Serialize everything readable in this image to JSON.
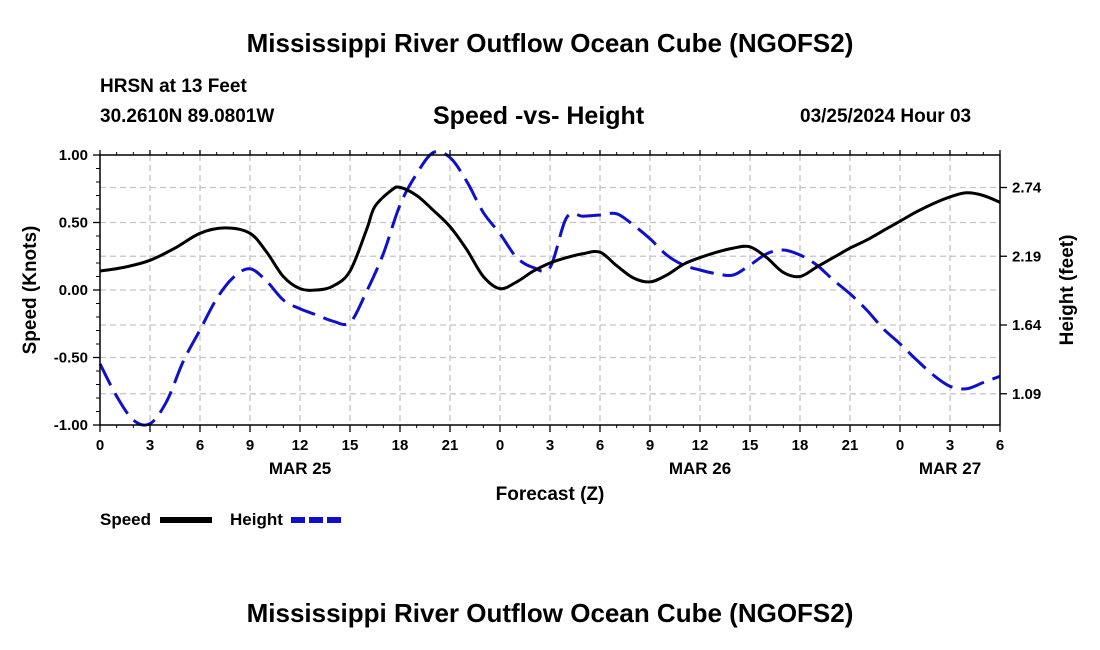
{
  "header": {
    "title": "Mississippi River Outflow Ocean Cube (NGOFS2)",
    "station": "HRSN at 13 Feet",
    "coords": "30.2610N  89.0801W",
    "subtitle": "Speed -vs- Height",
    "datetime": "03/25/2024 Hour 03"
  },
  "footer": {
    "title": "Mississippi River Outflow Ocean Cube (NGOFS2)"
  },
  "chart_data": {
    "type": "line",
    "xlabel": "Forecast (Z)",
    "ylabel_left": "Speed (Knots)",
    "ylabel_right": "Height (feet)",
    "x_unit": "hours since 03/25 00Z",
    "xlim": [
      0,
      54
    ],
    "ylim_left": [
      -1.0,
      1.0
    ],
    "ylim_right": [
      0.84,
      3.0
    ],
    "grid": true,
    "x_ticks": [
      0,
      3,
      6,
      9,
      12,
      15,
      18,
      21,
      24,
      27,
      30,
      33,
      36,
      39,
      42,
      45,
      48,
      51,
      54
    ],
    "x_tick_labels": [
      "0",
      "3",
      "6",
      "9",
      "12",
      "15",
      "18",
      "21",
      "0",
      "3",
      "6",
      "9",
      "12",
      "15",
      "18",
      "21",
      "0",
      "3",
      "6"
    ],
    "date_labels": [
      {
        "x": 12,
        "label": "MAR 25"
      },
      {
        "x": 36,
        "label": "MAR 26"
      },
      {
        "x": 51,
        "label": "MAR 27"
      }
    ],
    "left_ticks": [
      1.0,
      0.5,
      0.0,
      -0.5,
      -1.0
    ],
    "left_tick_labels": [
      "1.00",
      "0.50",
      "0.00",
      "-0.50",
      "-1.00"
    ],
    "right_ticks": [
      2.74,
      2.19,
      1.64,
      1.09
    ],
    "right_tick_labels": [
      "2.74",
      "2.19",
      "1.64",
      "1.09"
    ],
    "legend": [
      {
        "name": "Speed",
        "color": "#000000",
        "dashed": false
      },
      {
        "name": "Height",
        "color": "#1010cc",
        "dashed": true
      }
    ],
    "series": [
      {
        "name": "Speed",
        "axis": "left",
        "color": "#000000",
        "x": [
          0,
          1.5,
          3,
          4.5,
          6,
          7.5,
          9,
          10,
          11,
          12,
          13,
          14,
          15,
          16,
          16.5,
          17.5,
          18,
          19,
          20,
          21,
          22,
          23,
          24,
          25,
          26,
          27,
          28,
          29,
          30,
          31,
          32,
          33,
          34,
          35,
          36,
          37,
          38,
          39,
          40,
          41,
          42,
          43,
          44,
          45,
          46,
          47,
          48,
          49,
          50,
          51,
          52,
          53,
          54
        ],
        "y": [
          0.14,
          0.17,
          0.22,
          0.31,
          0.42,
          0.46,
          0.42,
          0.28,
          0.1,
          0.01,
          0.0,
          0.03,
          0.14,
          0.45,
          0.62,
          0.74,
          0.76,
          0.7,
          0.59,
          0.47,
          0.3,
          0.1,
          0.01,
          0.06,
          0.14,
          0.2,
          0.24,
          0.27,
          0.28,
          0.18,
          0.09,
          0.06,
          0.11,
          0.19,
          0.24,
          0.28,
          0.31,
          0.32,
          0.24,
          0.13,
          0.1,
          0.17,
          0.24,
          0.31,
          0.37,
          0.44,
          0.51,
          0.58,
          0.64,
          0.69,
          0.72,
          0.7,
          0.65
        ]
      },
      {
        "name": "Height",
        "axis": "right",
        "color": "#1010cc",
        "x": [
          0,
          1,
          2,
          3,
          4,
          5,
          6,
          7,
          8,
          9,
          10,
          11,
          12,
          13,
          14,
          15,
          16,
          17,
          18,
          19,
          20,
          21,
          22,
          23,
          24,
          25,
          26,
          27,
          28,
          29,
          30,
          31,
          32,
          33,
          34,
          35,
          36,
          37,
          38,
          39,
          40,
          41,
          42,
          43,
          44,
          45,
          46,
          47,
          48,
          49,
          50,
          51,
          52,
          53,
          54
        ],
        "y": [
          1.33,
          1.07,
          0.88,
          0.85,
          1.03,
          1.35,
          1.6,
          1.85,
          2.02,
          2.09,
          1.99,
          1.84,
          1.77,
          1.72,
          1.67,
          1.66,
          1.91,
          2.21,
          2.6,
          2.85,
          3.02,
          2.98,
          2.79,
          2.54,
          2.37,
          2.18,
          2.1,
          2.1,
          2.5,
          2.51,
          2.52,
          2.53,
          2.44,
          2.33,
          2.2,
          2.12,
          2.08,
          2.05,
          2.04,
          2.12,
          2.21,
          2.24,
          2.2,
          2.12,
          2.0,
          1.89,
          1.76,
          1.61,
          1.49,
          1.36,
          1.24,
          1.15,
          1.13,
          1.18,
          1.23
        ]
      }
    ]
  }
}
